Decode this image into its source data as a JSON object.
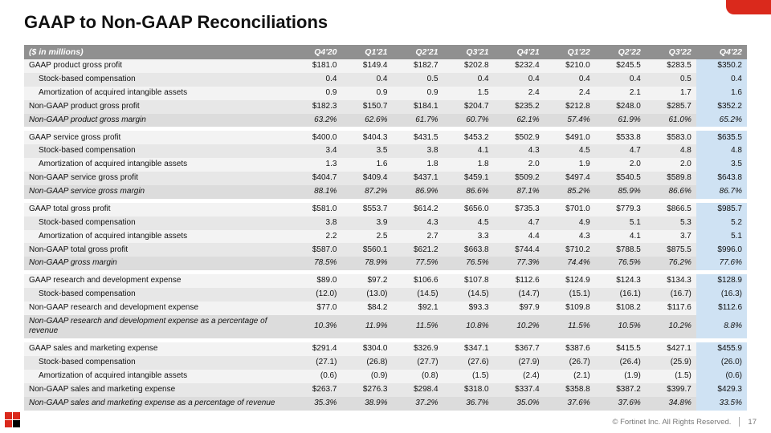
{
  "title": "GAAP to Non-GAAP Reconciliations",
  "unit_label": "($ in millions)",
  "periods": [
    "Q4'20",
    "Q1'21",
    "Q2'21",
    "Q3'21",
    "Q4'21",
    "Q1'22",
    "Q2'22",
    "Q3'22",
    "Q4'22"
  ],
  "highlight_col": 8,
  "colors": {
    "accent": "#da291c",
    "header_bg": "#909090",
    "row_light": "#f3f3f3",
    "row_med": "#e7e7e7",
    "row_italic": "#dcdcdc",
    "highlight": "#cfe2f3"
  },
  "rows": [
    {
      "label": "GAAP product gross profit",
      "style": "light",
      "vals": [
        "$181.0",
        "$149.4",
        "$182.7",
        "$202.8",
        "$232.4",
        "$210.0",
        "$245.5",
        "$283.5",
        "$350.2"
      ]
    },
    {
      "label": "Stock-based compensation",
      "style": "med",
      "indent": true,
      "vals": [
        "0.4",
        "0.4",
        "0.5",
        "0.4",
        "0.4",
        "0.4",
        "0.4",
        "0.5",
        "0.4"
      ]
    },
    {
      "label": "Amortization of acquired intangible assets",
      "style": "light",
      "indent": true,
      "vals": [
        "0.9",
        "0.9",
        "0.9",
        "1.5",
        "2.4",
        "2.4",
        "2.1",
        "1.7",
        "1.6"
      ]
    },
    {
      "label": "Non-GAAP product gross profit",
      "style": "med",
      "vals": [
        "$182.3",
        "$150.7",
        "$184.1",
        "$204.7",
        "$235.2",
        "$212.8",
        "$248.0",
        "$285.7",
        "$352.2"
      ]
    },
    {
      "label": "Non-GAAP product gross margin",
      "style": "italic",
      "vals": [
        "63.2%",
        "62.6%",
        "61.7%",
        "60.7%",
        "62.1%",
        "57.4%",
        "61.9%",
        "61.0%",
        "65.2%"
      ]
    },
    {
      "spacer": true
    },
    {
      "label": "GAAP service gross profit",
      "style": "light",
      "vals": [
        "$400.0",
        "$404.3",
        "$431.5",
        "$453.2",
        "$502.9",
        "$491.0",
        "$533.8",
        "$583.0",
        "$635.5"
      ]
    },
    {
      "label": "Stock-based compensation",
      "style": "med",
      "indent": true,
      "vals": [
        "3.4",
        "3.5",
        "3.8",
        "4.1",
        "4.3",
        "4.5",
        "4.7",
        "4.8",
        "4.8"
      ]
    },
    {
      "label": "Amortization of acquired intangible assets",
      "style": "light",
      "indent": true,
      "vals": [
        "1.3",
        "1.6",
        "1.8",
        "1.8",
        "2.0",
        "1.9",
        "2.0",
        "2.0",
        "3.5"
      ]
    },
    {
      "label": "Non-GAAP service gross profit",
      "style": "med",
      "vals": [
        "$404.7",
        "$409.4",
        "$437.1",
        "$459.1",
        "$509.2",
        "$497.4",
        "$540.5",
        "$589.8",
        "$643.8"
      ]
    },
    {
      "label": "Non-GAAP service gross margin",
      "style": "italic",
      "vals": [
        "88.1%",
        "87.2%",
        "86.9%",
        "86.6%",
        "87.1%",
        "85.2%",
        "85.9%",
        "86.6%",
        "86.7%"
      ]
    },
    {
      "spacer": true
    },
    {
      "label": "GAAP total gross profit",
      "style": "light",
      "vals": [
        "$581.0",
        "$553.7",
        "$614.2",
        "$656.0",
        "$735.3",
        "$701.0",
        "$779.3",
        "$866.5",
        "$985.7"
      ]
    },
    {
      "label": "Stock-based compensation",
      "style": "med",
      "indent": true,
      "vals": [
        "3.8",
        "3.9",
        "4.3",
        "4.5",
        "4.7",
        "4.9",
        "5.1",
        "5.3",
        "5.2"
      ]
    },
    {
      "label": "Amortization of acquired intangible assets",
      "style": "light",
      "indent": true,
      "vals": [
        "2.2",
        "2.5",
        "2.7",
        "3.3",
        "4.4",
        "4.3",
        "4.1",
        "3.7",
        "5.1"
      ]
    },
    {
      "label": "Non-GAAP total gross profit",
      "style": "med",
      "vals": [
        "$587.0",
        "$560.1",
        "$621.2",
        "$663.8",
        "$744.4",
        "$710.2",
        "$788.5",
        "$875.5",
        "$996.0"
      ]
    },
    {
      "label": "Non-GAAP gross margin",
      "style": "italic",
      "vals": [
        "78.5%",
        "78.9%",
        "77.5%",
        "76.5%",
        "77.3%",
        "74.4%",
        "76.5%",
        "76.2%",
        "77.6%"
      ]
    },
    {
      "spacer": true
    },
    {
      "label": "GAAP research and development expense",
      "style": "light",
      "vals": [
        "$89.0",
        "$97.2",
        "$106.6",
        "$107.8",
        "$112.6",
        "$124.9",
        "$124.3",
        "$134.3",
        "$128.9"
      ]
    },
    {
      "label": "Stock-based compensation",
      "style": "med",
      "indent": true,
      "vals": [
        "(12.0)",
        "(13.0)",
        "(14.5)",
        "(14.5)",
        "(14.7)",
        "(15.1)",
        "(16.1)",
        "(16.7)",
        "(16.3)"
      ]
    },
    {
      "label": "Non-GAAP research and development expense",
      "style": "light",
      "vals": [
        "$77.0",
        "$84.2",
        "$92.1",
        "$93.3",
        "$97.9",
        "$109.8",
        "$108.2",
        "$117.6",
        "$112.6"
      ]
    },
    {
      "label": "Non-GAAP research and development expense as a percentage of revenue",
      "style": "italic",
      "vals": [
        "10.3%",
        "11.9%",
        "11.5%",
        "10.8%",
        "10.2%",
        "11.5%",
        "10.5%",
        "10.2%",
        "8.8%"
      ]
    },
    {
      "spacer": true
    },
    {
      "label": "GAAP sales and marketing expense",
      "style": "light",
      "vals": [
        "$291.4",
        "$304.0",
        "$326.9",
        "$347.1",
        "$367.7",
        "$387.6",
        "$415.5",
        "$427.1",
        "$455.9"
      ]
    },
    {
      "label": "Stock-based compensation",
      "style": "med",
      "indent": true,
      "vals": [
        "(27.1)",
        "(26.8)",
        "(27.7)",
        "(27.6)",
        "(27.9)",
        "(26.7)",
        "(26.4)",
        "(25.9)",
        "(26.0)"
      ]
    },
    {
      "label": "Amortization of acquired intangible assets",
      "style": "light",
      "indent": true,
      "vals": [
        "(0.6)",
        "(0.9)",
        "(0.8)",
        "(1.5)",
        "(2.4)",
        "(2.1)",
        "(1.9)",
        "(1.5)",
        "(0.6)"
      ]
    },
    {
      "label": "Non-GAAP sales and marketing expense",
      "style": "med",
      "vals": [
        "$263.7",
        "$276.3",
        "$298.4",
        "$318.0",
        "$337.4",
        "$358.8",
        "$387.2",
        "$399.7",
        "$429.3"
      ]
    },
    {
      "label": "Non-GAAP sales and marketing expense as a percentage of revenue",
      "style": "italic",
      "vals": [
        "35.3%",
        "38.9%",
        "37.2%",
        "36.7%",
        "35.0%",
        "37.6%",
        "37.6%",
        "34.8%",
        "33.5%"
      ]
    }
  ],
  "footer": {
    "copyright": "© Fortinet Inc. All Rights Reserved.",
    "page": "17"
  }
}
